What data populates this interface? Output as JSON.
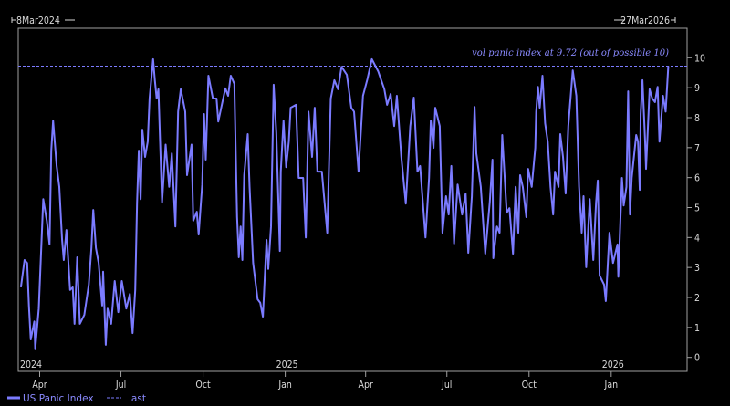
{
  "chart_data": {
    "type": "line",
    "title": "",
    "xlabel": "",
    "ylabel": "",
    "header_left": "8Mar2024",
    "header_right": "27Mar2026",
    "xlim": [
      "2024-03-08",
      "2026-03-27"
    ],
    "ylim": [
      0,
      10
    ],
    "y_ticks": [
      "0",
      "1",
      "2",
      "3",
      "4",
      "5",
      "6",
      "7",
      "8",
      "9",
      "10"
    ],
    "x_ticks": [
      {
        "date": "2024-04-01",
        "label": "Apr"
      },
      {
        "date": "2024-07-01",
        "label": "Jul"
      },
      {
        "date": "2024-10-01",
        "label": "Oct"
      },
      {
        "date": "2025-01-01",
        "label": "Jan"
      },
      {
        "date": "2025-04-01",
        "label": "Apr"
      },
      {
        "date": "2025-07-01",
        "label": "Jul"
      },
      {
        "date": "2025-10-01",
        "label": "Oct"
      },
      {
        "date": "2026-01-01",
        "label": "Jan"
      }
    ],
    "year_labels": [
      {
        "date": "2024-03-08",
        "label": "2024"
      },
      {
        "date": "2025-01-01",
        "label": "2025"
      },
      {
        "date": "2026-01-01",
        "label": "2026"
      }
    ],
    "grid": false,
    "legend_position": "bottom-left",
    "colors": {
      "background": "#000000",
      "series": "#7b7bff",
      "last_line": "#7b7bff",
      "text": "#d8d8d8",
      "frame": "#a0a0a0"
    },
    "reference_line": {
      "name": "last",
      "value": 9.72,
      "style": "dashed"
    },
    "annotation": "vol panic index at 9.72 (out of possible 10)",
    "series": [
      {
        "name": "US Panic Index",
        "points": [
          [
            "2024-03-11",
            2.34
          ],
          [
            "2024-03-15",
            3.25
          ],
          [
            "2024-03-18",
            3.15
          ],
          [
            "2024-03-20",
            1.73
          ],
          [
            "2024-03-22",
            0.6
          ],
          [
            "2024-03-26",
            1.2
          ],
          [
            "2024-03-27",
            0.27
          ],
          [
            "2024-03-31",
            1.63
          ],
          [
            "2024-04-05",
            5.28
          ],
          [
            "2024-04-09",
            4.56
          ],
          [
            "2024-04-12",
            3.77
          ],
          [
            "2024-04-14",
            6.9
          ],
          [
            "2024-04-16",
            7.9
          ],
          [
            "2024-04-20",
            6.39
          ],
          [
            "2024-04-23",
            5.69
          ],
          [
            "2024-04-26",
            3.95
          ],
          [
            "2024-04-28",
            3.25
          ],
          [
            "2024-05-01",
            4.25
          ],
          [
            "2024-05-05",
            2.25
          ],
          [
            "2024-05-08",
            2.34
          ],
          [
            "2024-05-10",
            1.12
          ],
          [
            "2024-05-13",
            3.34
          ],
          [
            "2024-05-16",
            1.12
          ],
          [
            "2024-05-21",
            1.42
          ],
          [
            "2024-05-26",
            2.43
          ],
          [
            "2024-05-29",
            3.65
          ],
          [
            "2024-05-31",
            4.92
          ],
          [
            "2024-06-03",
            3.65
          ],
          [
            "2024-06-06",
            3.15
          ],
          [
            "2024-06-10",
            1.73
          ],
          [
            "2024-06-11",
            2.86
          ],
          [
            "2024-06-14",
            0.42
          ],
          [
            "2024-06-16",
            1.63
          ],
          [
            "2024-06-20",
            1.12
          ],
          [
            "2024-06-24",
            2.55
          ],
          [
            "2024-06-28",
            1.51
          ],
          [
            "2024-07-02",
            2.55
          ],
          [
            "2024-07-07",
            1.63
          ],
          [
            "2024-07-11",
            2.12
          ],
          [
            "2024-07-14",
            0.81
          ],
          [
            "2024-07-17",
            2.25
          ],
          [
            "2024-07-19",
            5.16
          ],
          [
            "2024-07-21",
            6.9
          ],
          [
            "2024-07-23",
            5.28
          ],
          [
            "2024-07-25",
            7.6
          ],
          [
            "2024-07-28",
            6.69
          ],
          [
            "2024-07-31",
            7.2
          ],
          [
            "2024-08-02",
            8.64
          ],
          [
            "2024-08-06",
            9.95
          ],
          [
            "2024-08-08",
            9.25
          ],
          [
            "2024-08-10",
            8.64
          ],
          [
            "2024-08-12",
            8.95
          ],
          [
            "2024-08-16",
            5.16
          ],
          [
            "2024-08-20",
            7.1
          ],
          [
            "2024-08-24",
            5.69
          ],
          [
            "2024-08-27",
            6.81
          ],
          [
            "2024-08-31",
            4.37
          ],
          [
            "2024-09-03",
            8.2
          ],
          [
            "2024-09-06",
            8.95
          ],
          [
            "2024-09-11",
            8.2
          ],
          [
            "2024-09-13",
            6.08
          ],
          [
            "2024-09-18",
            7.1
          ],
          [
            "2024-09-20",
            4.56
          ],
          [
            "2024-09-24",
            4.86
          ],
          [
            "2024-09-26",
            4.1
          ],
          [
            "2024-09-30",
            5.77
          ],
          [
            "2024-10-02",
            8.12
          ],
          [
            "2024-10-04",
            6.6
          ],
          [
            "2024-10-07",
            9.4
          ],
          [
            "2024-10-12",
            8.64
          ],
          [
            "2024-10-16",
            8.64
          ],
          [
            "2024-10-18",
            7.87
          ],
          [
            "2024-10-22",
            8.43
          ],
          [
            "2024-10-26",
            8.98
          ],
          [
            "2024-10-29",
            8.73
          ],
          [
            "2024-11-01",
            9.4
          ],
          [
            "2024-11-05",
            9.13
          ],
          [
            "2024-11-08",
            4.68
          ],
          [
            "2024-11-10",
            3.34
          ],
          [
            "2024-11-12",
            4.37
          ],
          [
            "2024-11-14",
            3.25
          ],
          [
            "2024-11-16",
            6.08
          ],
          [
            "2024-11-20",
            7.45
          ],
          [
            "2024-11-22",
            5.69
          ],
          [
            "2024-11-26",
            3.15
          ],
          [
            "2024-12-01",
            1.94
          ],
          [
            "2024-12-04",
            1.82
          ],
          [
            "2024-12-07",
            1.36
          ],
          [
            "2024-12-11",
            3.92
          ],
          [
            "2024-12-13",
            2.95
          ],
          [
            "2024-12-16",
            4.37
          ],
          [
            "2024-12-19",
            9.1
          ],
          [
            "2024-12-22",
            7.5
          ],
          [
            "2024-12-26",
            3.55
          ],
          [
            "2024-12-27",
            6.2
          ],
          [
            "2024-12-30",
            7.9
          ],
          [
            "2025-01-02",
            6.35
          ],
          [
            "2025-01-05",
            7.2
          ],
          [
            "2025-01-07",
            8.33
          ],
          [
            "2025-01-13",
            8.43
          ],
          [
            "2025-01-16",
            5.99
          ],
          [
            "2025-01-21",
            5.99
          ],
          [
            "2025-01-24",
            4.0
          ],
          [
            "2025-01-27",
            8.2
          ],
          [
            "2025-01-31",
            6.69
          ],
          [
            "2025-02-03",
            8.33
          ],
          [
            "2025-02-06",
            6.2
          ],
          [
            "2025-02-11",
            6.2
          ],
          [
            "2025-02-17",
            4.16
          ],
          [
            "2025-02-21",
            8.64
          ],
          [
            "2025-02-25",
            9.25
          ],
          [
            "2025-03-01",
            8.95
          ],
          [
            "2025-03-05",
            9.7
          ],
          [
            "2025-03-11",
            9.43
          ],
          [
            "2025-03-16",
            8.33
          ],
          [
            "2025-03-19",
            8.2
          ],
          [
            "2025-03-24",
            6.2
          ],
          [
            "2025-03-29",
            8.73
          ],
          [
            "2025-04-03",
            9.28
          ],
          [
            "2025-04-08",
            9.95
          ],
          [
            "2025-04-15",
            9.55
          ],
          [
            "2025-04-22",
            8.95
          ],
          [
            "2025-04-25",
            8.43
          ],
          [
            "2025-04-29",
            8.79
          ],
          [
            "2025-05-03",
            7.72
          ],
          [
            "2025-05-06",
            8.73
          ],
          [
            "2025-05-11",
            6.69
          ],
          [
            "2025-05-16",
            5.13
          ],
          [
            "2025-05-21",
            7.72
          ],
          [
            "2025-05-25",
            8.67
          ],
          [
            "2025-05-29",
            6.2
          ],
          [
            "2025-06-01",
            6.39
          ],
          [
            "2025-06-07",
            4.0
          ],
          [
            "2025-06-11",
            5.99
          ],
          [
            "2025-06-13",
            7.9
          ],
          [
            "2025-06-16",
            6.99
          ],
          [
            "2025-06-18",
            8.33
          ],
          [
            "2025-06-23",
            7.72
          ],
          [
            "2025-06-26",
            4.16
          ],
          [
            "2025-06-30",
            5.38
          ],
          [
            "2025-07-03",
            4.77
          ],
          [
            "2025-07-06",
            6.39
          ],
          [
            "2025-07-09",
            3.8
          ],
          [
            "2025-07-13",
            5.77
          ],
          [
            "2025-07-18",
            4.77
          ],
          [
            "2025-07-22",
            5.47
          ],
          [
            "2025-07-25",
            3.49
          ],
          [
            "2025-07-29",
            5.38
          ],
          [
            "2025-08-01",
            8.36
          ],
          [
            "2025-08-03",
            6.81
          ],
          [
            "2025-08-08",
            5.69
          ],
          [
            "2025-08-13",
            3.46
          ],
          [
            "2025-08-18",
            5.16
          ],
          [
            "2025-08-21",
            6.6
          ],
          [
            "2025-08-22",
            3.31
          ],
          [
            "2025-08-26",
            4.37
          ],
          [
            "2025-08-29",
            4.16
          ],
          [
            "2025-09-01",
            7.42
          ],
          [
            "2025-09-06",
            4.83
          ],
          [
            "2025-09-09",
            4.98
          ],
          [
            "2025-09-13",
            3.46
          ],
          [
            "2025-09-16",
            5.69
          ],
          [
            "2025-09-19",
            4.16
          ],
          [
            "2025-09-21",
            6.08
          ],
          [
            "2025-09-24",
            5.69
          ],
          [
            "2025-09-28",
            4.68
          ],
          [
            "2025-09-30",
            6.29
          ],
          [
            "2025-10-04",
            5.69
          ],
          [
            "2025-10-08",
            6.99
          ],
          [
            "2025-10-09",
            8.2
          ],
          [
            "2025-10-11",
            9.03
          ],
          [
            "2025-10-13",
            8.33
          ],
          [
            "2025-10-16",
            9.4
          ],
          [
            "2025-10-19",
            7.81
          ],
          [
            "2025-10-22",
            7.2
          ],
          [
            "2025-10-25",
            5.69
          ],
          [
            "2025-10-28",
            4.77
          ],
          [
            "2025-10-30",
            6.2
          ],
          [
            "2025-11-03",
            5.69
          ],
          [
            "2025-11-05",
            7.45
          ],
          [
            "2025-11-08",
            6.69
          ],
          [
            "2025-11-11",
            5.47
          ],
          [
            "2025-11-14",
            7.72
          ],
          [
            "2025-11-19",
            9.58
          ],
          [
            "2025-11-23",
            8.73
          ],
          [
            "2025-11-26",
            5.69
          ],
          [
            "2025-11-29",
            4.16
          ],
          [
            "2025-12-01",
            5.38
          ],
          [
            "2025-12-04",
            3.01
          ],
          [
            "2025-12-08",
            5.28
          ],
          [
            "2025-12-12",
            3.25
          ],
          [
            "2025-12-15",
            5.16
          ],
          [
            "2025-12-17",
            5.9
          ],
          [
            "2025-12-19",
            2.73
          ],
          [
            "2025-12-24",
            2.43
          ],
          [
            "2025-12-26",
            1.88
          ],
          [
            "2025-12-30",
            4.16
          ],
          [
            "2026-01-03",
            3.15
          ],
          [
            "2026-01-08",
            3.77
          ],
          [
            "2026-01-09",
            2.69
          ],
          [
            "2026-01-13",
            5.99
          ],
          [
            "2026-01-15",
            5.07
          ],
          [
            "2026-01-18",
            5.69
          ],
          [
            "2026-01-20",
            8.88
          ],
          [
            "2026-01-22",
            4.77
          ],
          [
            "2026-01-24",
            5.99
          ],
          [
            "2026-01-29",
            7.42
          ],
          [
            "2026-01-31",
            7.2
          ],
          [
            "2026-02-02",
            5.59
          ],
          [
            "2026-02-03",
            8.12
          ],
          [
            "2026-02-05",
            9.25
          ],
          [
            "2026-02-08",
            7.2
          ],
          [
            "2026-02-09",
            6.29
          ],
          [
            "2026-02-13",
            8.95
          ],
          [
            "2026-02-16",
            8.64
          ],
          [
            "2026-02-19",
            8.52
          ],
          [
            "2026-02-22",
            9.03
          ],
          [
            "2026-02-24",
            7.2
          ],
          [
            "2026-02-28",
            8.73
          ],
          [
            "2026-03-03",
            8.2
          ],
          [
            "2026-03-05",
            9.25
          ],
          [
            "2026-03-06",
            9.72
          ]
        ]
      }
    ]
  },
  "legend": {
    "series_label": "US Panic Index",
    "last_label": "last"
  }
}
